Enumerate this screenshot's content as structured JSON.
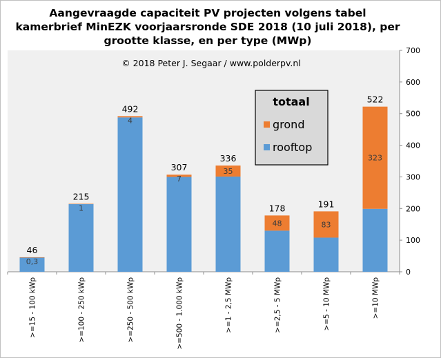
{
  "chart_data": {
    "type": "bar",
    "stacked": true,
    "title": "Aangevraagde capaciteit PV projecten volgens tabel kamerbrief MinEZK voorjaarsronde SDE 2018 (10 juli 2018), per grootte klasse, en per type (MWp)",
    "annotation": "© 2018  Peter J. Segaar / www.polderpv.nl",
    "categories": [
      ">=15 - 100 kWp",
      ">=100 - 250 kWp",
      ">=250 - 500 kWp",
      ">=500 - 1.000 kWp",
      ">=1 - 2,5 MWp",
      ">=2,5 - 5 MWp",
      ">=5 - 10 MWp",
      ">=10 MWp"
    ],
    "series": [
      {
        "name": "rooftop",
        "color": "#5b9bd5",
        "values": [
          45.7,
          214,
          488,
          300,
          301,
          130,
          108,
          199
        ]
      },
      {
        "name": "grond",
        "color": "#ed7d31",
        "values": [
          0.3,
          1,
          4,
          7,
          35,
          48,
          83,
          323
        ]
      }
    ],
    "segment_labels": {
      "grond": [
        "0,3",
        "1",
        "4",
        "7",
        "35",
        "48",
        "83",
        "323"
      ]
    },
    "totals": [
      "46",
      "215",
      "492",
      "307",
      "336",
      "178",
      "191",
      "522"
    ],
    "legend": {
      "title": "totaal",
      "entries": [
        "grond",
        "rooftop"
      ],
      "position": "top-right"
    },
    "y_axis": {
      "position": "right",
      "ylim": [
        0,
        700
      ],
      "ticks": [
        0,
        100,
        200,
        300,
        400,
        500,
        600,
        700
      ]
    },
    "plot_background": "#f0f0f0",
    "legend_background": "#d9d9d9"
  }
}
